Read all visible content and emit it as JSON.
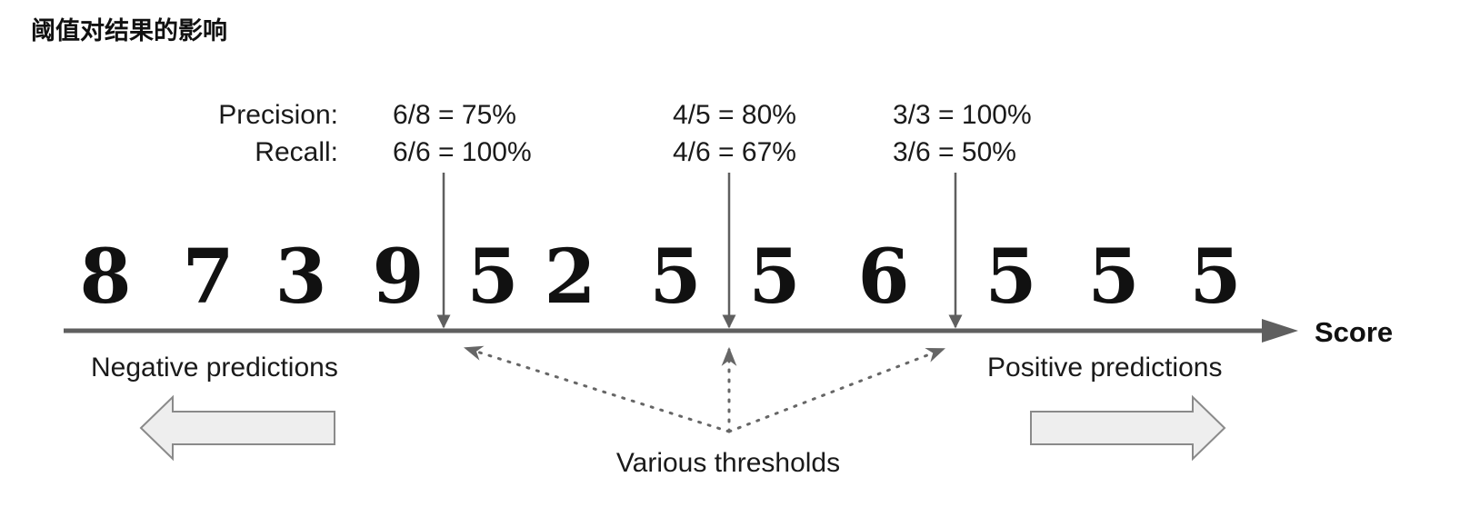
{
  "title": "阈值对结果的影响",
  "metric_labels": {
    "precision": "Precision:",
    "recall": "Recall:"
  },
  "thresholds": [
    {
      "precision": "6/8 = 75%",
      "recall": "6/6 = 100%"
    },
    {
      "precision": "4/5 = 80%",
      "recall": "4/6 = 67%"
    },
    {
      "precision": "3/3 = 100%",
      "recall": "3/6 = 50%"
    }
  ],
  "digits": [
    "8",
    "7",
    "3",
    "9",
    "5",
    "2",
    "5",
    "5",
    "6",
    "5",
    "5",
    "5"
  ],
  "axis_label": "Score",
  "negative_label": "Negative predictions",
  "positive_label": "Positive predictions",
  "thresholds_label": "Various thresholds",
  "colors": {
    "axis": "#5f5f5f",
    "arrow_fill": "#eeeeee",
    "arrow_stroke": "#8a8a8a",
    "text": "#1a1a1a"
  }
}
